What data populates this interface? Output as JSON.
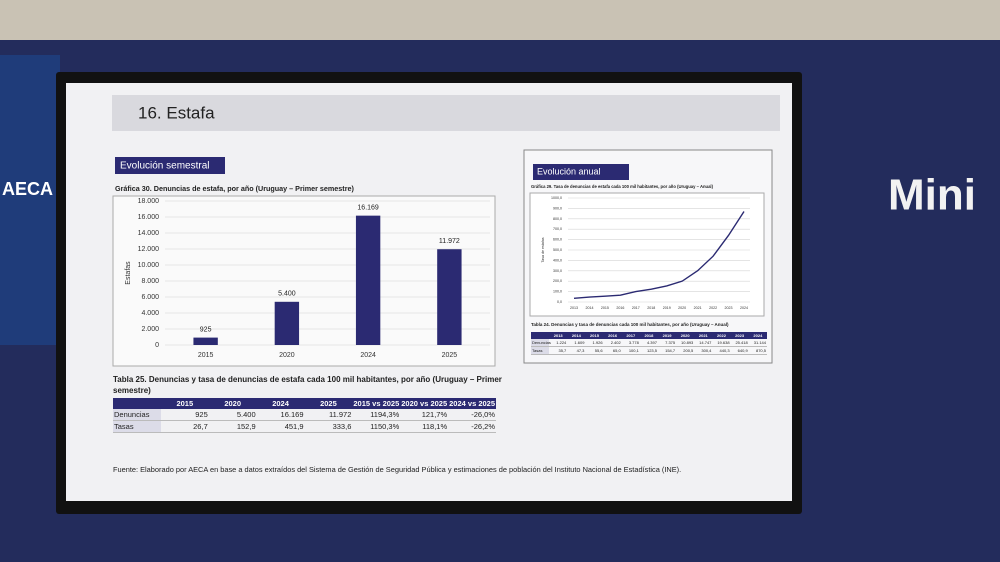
{
  "background": {
    "left_logo": "AECA",
    "right_sign": "Mini"
  },
  "slide": {
    "title": "16. Estafa",
    "left_section": "Evolución semestral",
    "right_section": "Evolución anual",
    "source": "Fuente: Elaborado por AECA en base a datos extraídos del Sistema de Gestión de Seguridad Pública y estimaciones de población del Instituto Nacional de Estadística (INE)."
  },
  "chart_data": [
    {
      "type": "bar",
      "title": "Gráfica 30. Denuncias de estafa, por año (Uruguay – Primer semestre)",
      "y_label": "Estafas",
      "categories": [
        "2015",
        "2020",
        "2024",
        "2025"
      ],
      "values": [
        925,
        5400,
        16169,
        11972
      ],
      "value_labels": [
        "925",
        "5.400",
        "16.169",
        "11.972"
      ],
      "color": "#2b2a72",
      "ylim": [
        0,
        18000
      ],
      "grid": true,
      "yticks": [
        0,
        {
          "value": 2000,
          "label": "2.000"
        },
        {
          "value": 4000,
          "label": "4.000"
        },
        {
          "value": 6000,
          "label": "6.000"
        },
        {
          "value": 8000,
          "label": "8.000"
        },
        {
          "value": 10000,
          "label": "10.000"
        },
        {
          "value": 12000,
          "label": "12.000"
        },
        {
          "value": 14000,
          "label": "14.000"
        },
        {
          "value": 16000,
          "label": "16.000"
        },
        {
          "value": 18000,
          "label": "18.000"
        }
      ]
    },
    {
      "type": "line",
      "title": "Gráfica 29. Tasa de denuncias de estafa cada 100 mil habitantes, por año (Uruguay – Anual)",
      "y_label": "Tasa de estafas",
      "categories": [
        "2013",
        "2014",
        "2015",
        "2016",
        "2017",
        "2018",
        "2019",
        "2020",
        "2021",
        "2022",
        "2023",
        "2024"
      ],
      "values": [
        35.7,
        47.3,
        55.6,
        65.0,
        100.1,
        123.5,
        154.7,
        200.5,
        300.4,
        440.3,
        640.9,
        870.5
      ],
      "color": "#2b2a72",
      "ylim": [
        0,
        1000
      ],
      "grid": true,
      "yticks": [
        {
          "value": 0,
          "label": "0,0"
        },
        {
          "value": 100,
          "label": "100,0"
        },
        {
          "value": 200,
          "label": "200,0"
        },
        {
          "value": 300,
          "label": "300,0"
        },
        {
          "value": 400,
          "label": "400,0"
        },
        {
          "value": 500,
          "label": "500,0"
        },
        {
          "value": 600,
          "label": "600,0"
        },
        {
          "value": 700,
          "label": "700,0"
        },
        {
          "value": 800,
          "label": "800,0"
        },
        {
          "value": 900,
          "label": "900,0"
        },
        {
          "value": 1000,
          "label": "1000,0"
        }
      ]
    }
  ],
  "tables": [
    {
      "title": "Tabla 25. Denuncias y tasa de denuncias de estafa cada 100 mil habitantes, por año (Uruguay – Primer semestre)",
      "header": [
        "2015",
        "2020",
        "2024",
        "2025",
        "2015 vs 2025",
        "2020 vs 2025",
        "2024 vs 2025"
      ],
      "rows": [
        [
          "Denuncias",
          "925",
          "5.400",
          "16.169",
          "11.972",
          "1194,3%",
          "121,7%",
          "-26,0%"
        ],
        [
          "Tasas",
          "26,7",
          "152,9",
          "451,9",
          "333,6",
          "1150,3%",
          "118,1%",
          "-26,2%"
        ]
      ]
    },
    {
      "title": "Tabla 24. Denuncias y tasa de denuncias cada 100 mil habitantes, por año (Uruguay – Anual)",
      "header": [
        "2013",
        "2014",
        "2015",
        "2016",
        "2017",
        "2018",
        "2019",
        "2020",
        "2021",
        "2022",
        "2023",
        "2024"
      ],
      "rows": [
        [
          "Denuncias",
          "1.224",
          "1.609",
          "1.926",
          "2.402",
          "3.778",
          "4.397",
          "7.375",
          "10.893",
          "14.747",
          "19.638",
          "25.418",
          "31.144"
        ],
        [
          "Tasas",
          "35,7",
          "47,3",
          "55,6",
          "65,0",
          "100,1",
          "123,5",
          "154,7",
          "200,5",
          "300,4",
          "440,3",
          "640,9",
          "870,5"
        ]
      ]
    }
  ]
}
